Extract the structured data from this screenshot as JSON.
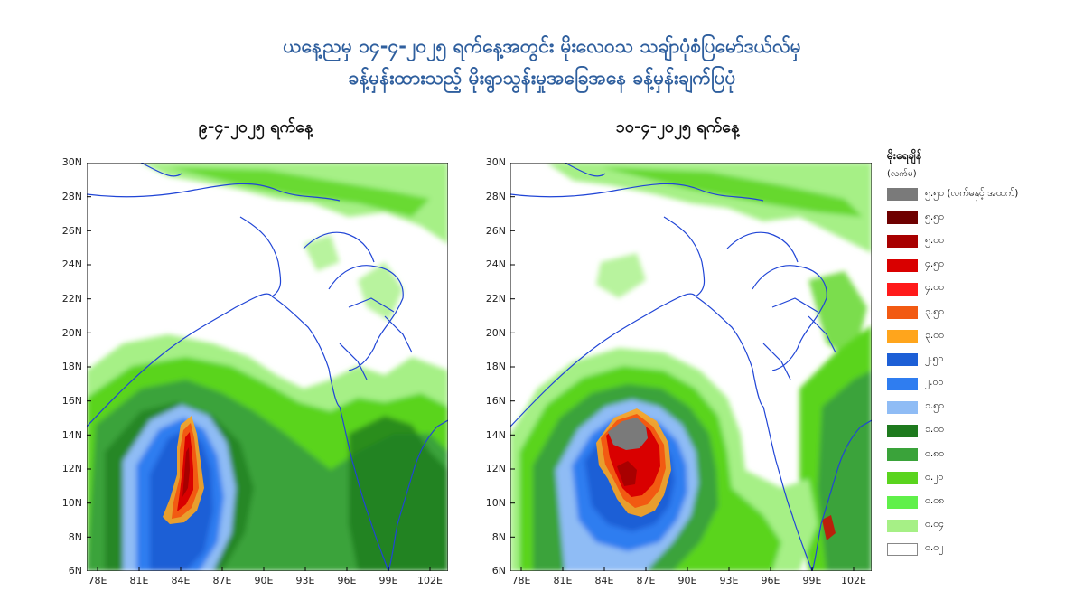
{
  "title": {
    "line1": "ယနေ့ညမှ ၁၄-၄-၂၀၂၅ ရက်နေ့အတွင်း မိုးလေဝသ သချ်ာပုံစံပြမော်ဒယ်လ်မှ",
    "line2": "ခန့်မှန်းထားသည့် မိုးရွာသွန်းမှုအခြေအနေ ခန့်မှန်းချက်ပြပုံ"
  },
  "panels": [
    {
      "date": "၉-၄-၂၀၂၅ ရက်နေ့"
    },
    {
      "date": "၁၀-၄-၂၀၂၅ ရက်နေ့"
    }
  ],
  "axes": {
    "y_ticks": [
      "30N",
      "28N",
      "26N",
      "24N",
      "22N",
      "20N",
      "18N",
      "16N",
      "14N",
      "12N",
      "10N",
      "8N",
      "6N"
    ],
    "x_ticks": [
      "78E",
      "81E",
      "84E",
      "87E",
      "90E",
      "93E",
      "96E",
      "99E",
      "102E"
    ]
  },
  "legend": {
    "title": "မိုးရေချိန်",
    "unit": "(လက်မ)",
    "items": [
      {
        "label": "၅.၅၀ (လက်မနှင့် အထက်)",
        "color": "#7a7a7a"
      },
      {
        "label": "၅.၅၀",
        "color": "#6e0000"
      },
      {
        "label": "၅.၀၀",
        "color": "#a80000"
      },
      {
        "label": "၄.၅၀",
        "color": "#d90000"
      },
      {
        "label": "၄.၀၀",
        "color": "#ff1a1a"
      },
      {
        "label": "၃.၅၀",
        "color": "#f25a12"
      },
      {
        "label": "၃.၀၀",
        "color": "#ffa51c"
      },
      {
        "label": "၂.၅၀",
        "color": "#1d5fd6"
      },
      {
        "label": "၂.၀၀",
        "color": "#2f7df0"
      },
      {
        "label": "၁.၅၀",
        "color": "#8fbcf5"
      },
      {
        "label": "၁.၀၀",
        "color": "#1e7a1e"
      },
      {
        "label": "၀.၈၀",
        "color": "#3aa33a"
      },
      {
        "label": "၀.၂၀",
        "color": "#5ad41e"
      },
      {
        "label": "၀.၀၈",
        "color": "#60f04a"
      },
      {
        "label": "၀.၀၄",
        "color": "#a6f086"
      },
      {
        "label": "၀.၀၂",
        "color": "#ffffff"
      }
    ]
  }
}
